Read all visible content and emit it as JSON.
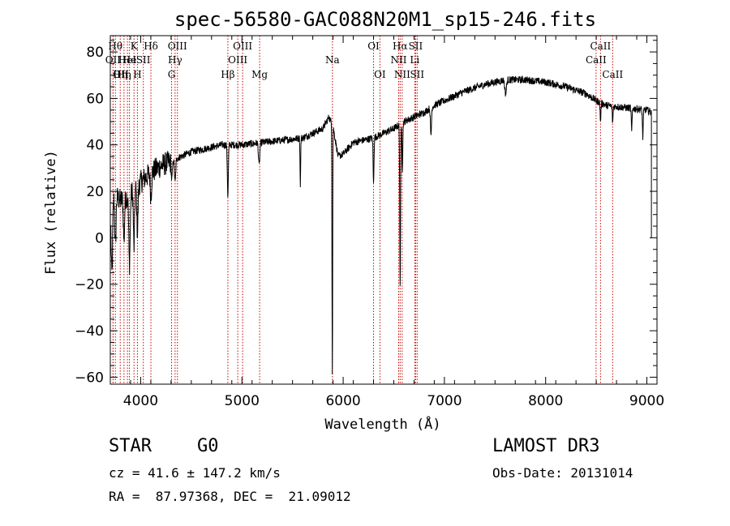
{
  "chart_data": {
    "type": "line",
    "title": "spec-56580-GAC088N20M1_sp15-246.fits",
    "xlabel": "Wavelength (Å)",
    "ylabel": "Flux (relative)",
    "xlim": [
      3700,
      9100
    ],
    "ylim": [
      -63,
      87
    ],
    "xticks": [
      4000,
      5000,
      6000,
      7000,
      8000,
      9000
    ],
    "yticks": [
      -60,
      -40,
      -20,
      0,
      20,
      40,
      60,
      80
    ],
    "continuum": [
      [
        3700,
        20
      ],
      [
        3800,
        16
      ],
      [
        3900,
        19
      ],
      [
        4000,
        24
      ],
      [
        4100,
        28
      ],
      [
        4200,
        31
      ],
      [
        4300,
        33
      ],
      [
        4400,
        35
      ],
      [
        4500,
        37
      ],
      [
        4600,
        38
      ],
      [
        4700,
        39
      ],
      [
        4800,
        40
      ],
      [
        4900,
        40
      ],
      [
        5000,
        40
      ],
      [
        5200,
        41
      ],
      [
        5400,
        42
      ],
      [
        5600,
        43
      ],
      [
        5800,
        47
      ],
      [
        5860,
        52
      ],
      [
        5900,
        48
      ],
      [
        5950,
        35
      ],
      [
        6000,
        36
      ],
      [
        6100,
        41
      ],
      [
        6200,
        42
      ],
      [
        6300,
        43
      ],
      [
        6400,
        45
      ],
      [
        6500,
        47
      ],
      [
        6600,
        50
      ],
      [
        6700,
        52
      ],
      [
        6800,
        54
      ],
      [
        6900,
        57
      ],
      [
        7000,
        59
      ],
      [
        7200,
        63
      ],
      [
        7400,
        66
      ],
      [
        7600,
        68
      ],
      [
        7800,
        68
      ],
      [
        8000,
        67
      ],
      [
        8200,
        65
      ],
      [
        8400,
        62
      ],
      [
        8500,
        59
      ],
      [
        8600,
        57
      ],
      [
        8800,
        56
      ],
      [
        9000,
        55
      ],
      [
        9050,
        54
      ]
    ],
    "features": [
      {
        "x": 3715,
        "depth": 35,
        "width": 8
      },
      {
        "x": 3750,
        "depth": 22,
        "width": 6
      },
      {
        "x": 3835,
        "depth": 18,
        "width": 6
      },
      {
        "x": 3889,
        "depth": 30,
        "width": 7
      },
      {
        "x": 3934,
        "depth": 25,
        "width": 6
      },
      {
        "x": 3968,
        "depth": 20,
        "width": 6
      },
      {
        "x": 4101,
        "depth": 10,
        "width": 6
      },
      {
        "x": 4307,
        "depth": 8,
        "width": 6
      },
      {
        "x": 4340,
        "depth": 10,
        "width": 6
      },
      {
        "x": 4861,
        "depth": 22,
        "width": 5
      },
      {
        "x": 5170,
        "depth": 10,
        "width": 6
      },
      {
        "x": 5577,
        "depth": 20,
        "width": 3
      },
      {
        "x": 5893,
        "depth": 108,
        "width": 3
      },
      {
        "x": 6300,
        "depth": 20,
        "width": 4
      },
      {
        "x": 6563,
        "depth": 70,
        "width": 4
      },
      {
        "x": 6585,
        "depth": 20,
        "width": 4
      },
      {
        "x": 6867,
        "depth": 12,
        "width": 5
      },
      {
        "x": 7605,
        "depth": 6,
        "width": 8
      },
      {
        "x": 8542,
        "depth": 8,
        "width": 4
      },
      {
        "x": 8662,
        "depth": 7,
        "width": 4
      },
      {
        "x": 8850,
        "depth": 10,
        "width": 4
      },
      {
        "x": 8960,
        "depth": 12,
        "width": 4
      }
    ],
    "end_drop": {
      "x": 9045,
      "y_from": 62,
      "y_to": 0
    },
    "noise": 1.6,
    "lines": [
      {
        "x": 3750,
        "label": "Hθ",
        "row": 0,
        "align": "middle"
      },
      {
        "x": 3727,
        "label": "OII",
        "row": 1,
        "align": "middle"
      },
      {
        "x": 3727,
        "label": "OII",
        "row": 2,
        "align": "start"
      },
      {
        "x": 3798,
        "label": "Hη",
        "row": 2,
        "align": "middle"
      },
      {
        "x": 3835,
        "label": "Hη",
        "row": 2,
        "align": "middle"
      },
      {
        "x": 3869,
        "label": "HeI",
        "row": 1,
        "align": "middle"
      },
      {
        "x": 3889,
        "label": "He",
        "row": 1,
        "align": "middle"
      },
      {
        "x": 3934,
        "label": "K",
        "row": 0,
        "align": "middle"
      },
      {
        "x": 3968,
        "label": "H",
        "row": 2,
        "align": "middle"
      },
      {
        "x": 4026,
        "label": "SII",
        "row": 1,
        "align": "middle"
      },
      {
        "x": 4101,
        "label": "Hδ",
        "row": 0,
        "align": "middle"
      },
      {
        "x": 4305,
        "label": "G",
        "row": 2,
        "align": "middle"
      },
      {
        "x": 4340,
        "label": "Hγ",
        "row": 1,
        "align": "middle"
      },
      {
        "x": 4363,
        "label": "OIII",
        "row": 0,
        "align": "middle"
      },
      {
        "x": 4861,
        "label": "Hβ",
        "row": 2,
        "align": "middle"
      },
      {
        "x": 4959,
        "label": "OIII",
        "row": 1,
        "align": "middle"
      },
      {
        "x": 5007,
        "label": "OIII",
        "row": 0,
        "align": "middle"
      },
      {
        "x": 5175,
        "label": "Mg",
        "row": 2,
        "align": "middle"
      },
      {
        "x": 5894,
        "label": "Na",
        "row": 1,
        "align": "middle"
      },
      {
        "x": 6300,
        "label": "OI",
        "row": 0,
        "align": "middle"
      },
      {
        "x": 6363,
        "label": "OI",
        "row": 2,
        "align": "middle"
      },
      {
        "x": 6548,
        "label": "NII",
        "row": 1,
        "align": "middle"
      },
      {
        "x": 6563,
        "label": "Hα",
        "row": 0,
        "align": "middle"
      },
      {
        "x": 6583,
        "label": "NII",
        "row": 2,
        "align": "middle"
      },
      {
        "x": 6707,
        "label": "Li",
        "row": 1,
        "align": "middle"
      },
      {
        "x": 6716,
        "label": "SII",
        "row": 0,
        "align": "middle"
      },
      {
        "x": 6731,
        "label": "SII",
        "row": 2,
        "align": "middle"
      },
      {
        "x": 8498,
        "label": "CaII",
        "row": 1,
        "align": "middle"
      },
      {
        "x": 8542,
        "label": "CaII",
        "row": 0,
        "align": "middle"
      },
      {
        "x": 8662,
        "label": "CaII",
        "row": 2,
        "align": "middle"
      }
    ]
  },
  "info": {
    "class": "STAR",
    "subclass": "G0",
    "survey": "LAMOST DR3",
    "redshift": "cz = 41.6 ± 147.2 km/s",
    "obs_date": "Obs-Date: 20131014",
    "coords": "RA =  87.97368, DEC =  21.09012"
  },
  "colors": {
    "spectrum": "#000000",
    "line_markers": "#cc0000"
  }
}
